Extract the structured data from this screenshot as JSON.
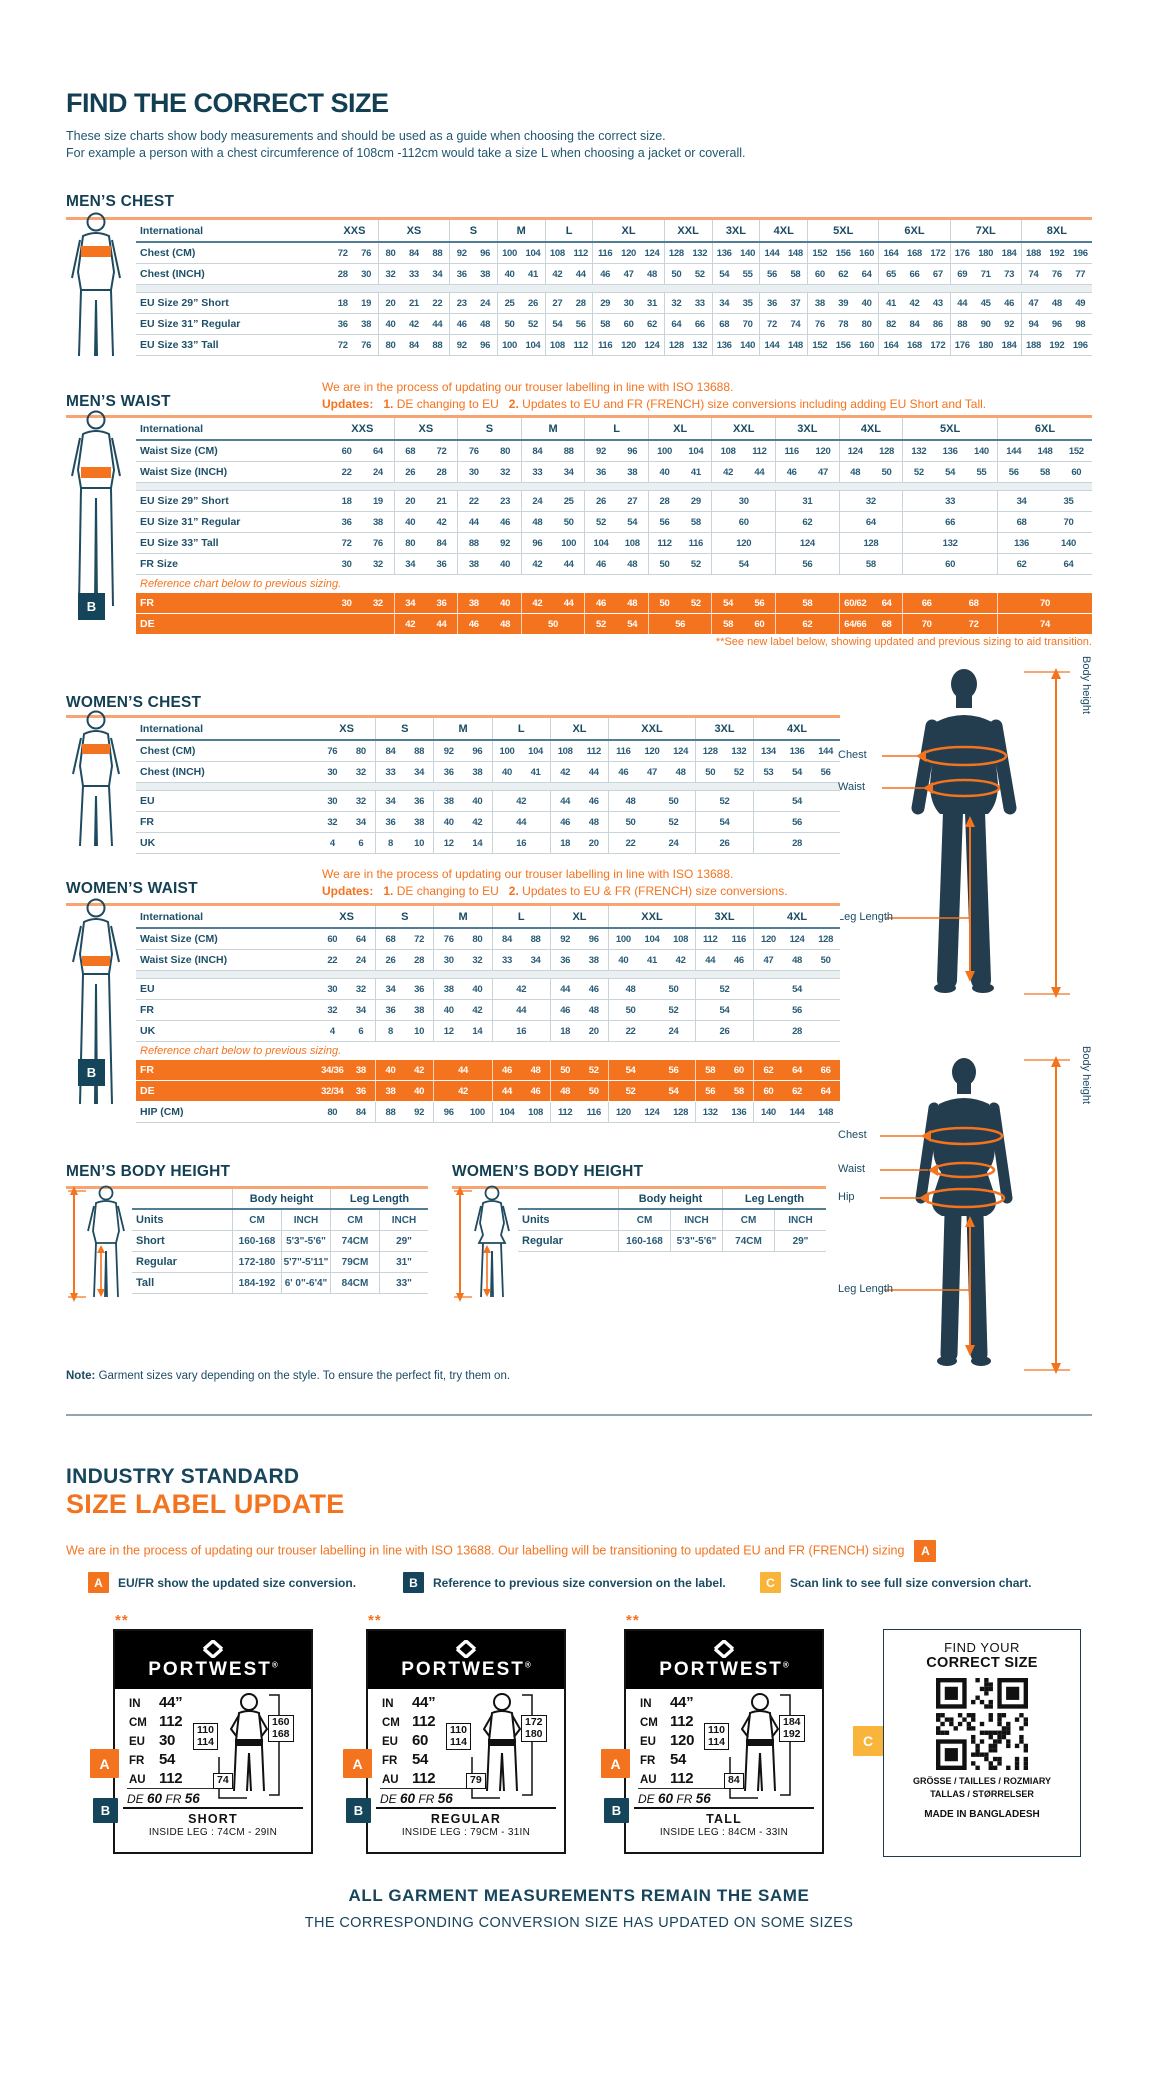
{
  "header": {
    "title": "FIND THE CORRECT SIZE",
    "intro1": "These size charts show body measurements and should be used as a guide when choosing the correct size.",
    "intro2": "For example a person with a chest circumference of 108cm -112cm would take a size L when choosing a jacket or coverall."
  },
  "mens_chest": {
    "title": "MEN’S CHEST",
    "header_label": "International",
    "col_groups": [
      [
        "XXS",
        2
      ],
      [
        "XS",
        3
      ],
      [
        "S",
        2
      ],
      [
        "M",
        2
      ],
      [
        "L",
        2
      ],
      [
        "XL",
        3
      ],
      [
        "XXL",
        2
      ],
      [
        "3XL",
        2
      ],
      [
        "4XL",
        2
      ],
      [
        "5XL",
        3
      ],
      [
        "6XL",
        3
      ],
      [
        "7XL",
        3
      ],
      [
        "8XL",
        3
      ]
    ],
    "rows": [
      {
        "label": "Chest (CM)",
        "cells": [
          "72 76",
          "80 84 88",
          "92 96",
          "100 104",
          "108 112",
          "116 120 124",
          "128 132",
          "136 140",
          "144 148",
          "152 156 160",
          "164 168 172",
          "176 180 184",
          "188 192 196"
        ]
      },
      {
        "label": "Chest (INCH)",
        "cells": [
          "28 30",
          "32 33 34",
          "36 38",
          "40 41",
          "42 44",
          "46 47 48",
          "50 52",
          "54 55",
          "56 58",
          "60 62 64",
          "65 66 67",
          "69 71 73",
          "74 76 77"
        ]
      },
      {
        "gap": true
      },
      {
        "label": "EU Size 29” Short",
        "cells": [
          "18 19",
          "20 21 22",
          "23 24",
          "25 26",
          "27 28",
          "29 30 31",
          "32 33",
          "34 35",
          "36 37",
          "38 39 40",
          "41 42 43",
          "44 45 46",
          "47 48 49"
        ]
      },
      {
        "label": "EU Size 31” Regular",
        "cells": [
          "36 38",
          "40 42 44",
          "46 48",
          "50 52",
          "54 56",
          "58 60 62",
          "64 66",
          "68 70",
          "72 74",
          "76 78 80",
          "82 84 86",
          "88 90 92",
          "94 96 98"
        ]
      },
      {
        "label": "EU Size 33” Tall",
        "cells": [
          "72 76",
          "80 84 88",
          "92 96",
          "100 104",
          "108 112",
          "116 120 124",
          "128 132",
          "136 140",
          "144 148",
          "152 156 160",
          "164 168 172",
          "176 180 184",
          "188 192 196"
        ]
      }
    ]
  },
  "mens_waist": {
    "title": "MEN’S WAIST",
    "note1": "We are in the process of updating our trouser labelling in line with ISO 13688.",
    "updates_label": "Updates:",
    "u1n": "1.",
    "u1": " DE changing to EU",
    "u2n": "2.",
    "u2": " Updates to EU and FR (FRENCH) size conversions including adding EU Short and Tall.",
    "header_label": "International",
    "badge": "B",
    "col_groups": [
      [
        "XXS",
        2
      ],
      [
        "XS",
        2
      ],
      [
        "S",
        2
      ],
      [
        "M",
        2
      ],
      [
        "L",
        2
      ],
      [
        "XL",
        2
      ],
      [
        "XXL",
        2
      ],
      [
        "3XL",
        2
      ],
      [
        "4XL",
        2
      ],
      [
        "5XL",
        3
      ],
      [
        "6XL",
        3
      ]
    ],
    "rows": [
      {
        "label": "Waist Size (CM)",
        "cells": [
          "60 64",
          "68 72",
          "76 80",
          "84 88",
          "92 96",
          "100 104",
          "108 112",
          "116 120",
          "124 128",
          "132 136 140",
          "144 148 152"
        ]
      },
      {
        "label": "Waist Size (INCH)",
        "cells": [
          "22 24",
          "26 28",
          "30 32",
          "33 34",
          "36 38",
          "40 41",
          "42 44",
          "46 47",
          "48 50",
          "52 54 55",
          "56 58 60"
        ]
      },
      {
        "gap": true
      },
      {
        "label": "EU Size 29” Short",
        "cells": [
          "18 19",
          "20 21",
          "22 23",
          "24 25",
          "26 27",
          "28 29",
          "30",
          "31",
          "32",
          "33",
          "34 35"
        ]
      },
      {
        "label": "EU Size 31” Regular",
        "cells": [
          "36 38",
          "40 42",
          "44 46",
          "48 50",
          "52 54",
          "56 58",
          "60",
          "62",
          "64",
          "66",
          "68 70"
        ]
      },
      {
        "label": "EU Size 33” Tall",
        "cells": [
          "72 76",
          "80 84",
          "88 92",
          "96 100",
          "104 108",
          "112 116",
          "120",
          "124",
          "128",
          "132",
          "136 140"
        ]
      },
      {
        "label": "FR Size",
        "cells": [
          "30 32",
          "34 36",
          "38 40",
          "42 44",
          "46 48",
          "50 52",
          "54",
          "56",
          "58",
          "60",
          "62 64"
        ]
      },
      {
        "ref": "Reference chart below to previous sizing."
      },
      {
        "label": "FR",
        "orange": true,
        "cells": [
          "30 32",
          "34 36",
          "38 40",
          "42 44",
          "46 48",
          "50 52",
          "54 56",
          "58",
          "60/62 64",
          "66 68",
          "70"
        ]
      },
      {
        "label": "DE",
        "orange": true,
        "cells": [
          "",
          "42 44",
          "46 48",
          "50",
          "52 54",
          "56",
          "58 60",
          "62",
          "64/66 68",
          "70 72",
          "74"
        ]
      }
    ],
    "footnote": "**See new label below, showing updated and previous sizing to aid transition."
  },
  "womens_chest": {
    "title": "WOMEN’S CHEST",
    "header_label": "International",
    "col_groups": [
      [
        "XS",
        2
      ],
      [
        "S",
        2
      ],
      [
        "M",
        2
      ],
      [
        "L",
        2
      ],
      [
        "XL",
        2
      ],
      [
        "XXL",
        3
      ],
      [
        "3XL",
        2
      ],
      [
        "4XL",
        3
      ]
    ],
    "rows": [
      {
        "label": "Chest (CM)",
        "cells": [
          "76 80",
          "84 88",
          "92 96",
          "100 104",
          "108 112",
          "116 120 124",
          "128 132",
          "134 136 144"
        ]
      },
      {
        "label": "Chest (INCH)",
        "cells": [
          "30 32",
          "33 34",
          "36 38",
          "40 41",
          "42 44",
          "46 47 48",
          "50 52",
          "53 54 56"
        ]
      },
      {
        "gap": true
      },
      {
        "label": "EU",
        "cells": [
          "30 32",
          "34 36",
          "38 40",
          "42",
          "44 46",
          "48 50",
          "52",
          "54"
        ]
      },
      {
        "label": "FR",
        "cells": [
          "32 34",
          "36 38",
          "40 42",
          "44",
          "46 48",
          "50 52",
          "54",
          "56"
        ]
      },
      {
        "label": "UK",
        "cells": [
          "4 6",
          "8 10",
          "12 14",
          "16",
          "18 20",
          "22 24",
          "26",
          "28"
        ]
      }
    ]
  },
  "womens_waist": {
    "title": "WOMEN’S WAIST",
    "note1": "We are in the process of updating our trouser labelling in line with ISO 13688.",
    "updates_label": "Updates:",
    "u1n": "1.",
    "u1": " DE changing to EU",
    "u2n": "2.",
    "u2": " Updates to EU & FR (FRENCH) size conversions.",
    "header_label": "International",
    "badge": "B",
    "col_groups": [
      [
        "XS",
        2
      ],
      [
        "S",
        2
      ],
      [
        "M",
        2
      ],
      [
        "L",
        2
      ],
      [
        "XL",
        2
      ],
      [
        "XXL",
        3
      ],
      [
        "3XL",
        2
      ],
      [
        "4XL",
        3
      ]
    ],
    "rows": [
      {
        "label": "Waist Size (CM)",
        "cells": [
          "60 64",
          "68 72",
          "76 80",
          "84 88",
          "92 96",
          "100 104 108",
          "112 116",
          "120 124 128"
        ]
      },
      {
        "label": "Waist Size (INCH)",
        "cells": [
          "22 24",
          "26 28",
          "30 32",
          "33 34",
          "36 38",
          "40 41 42",
          "44 46",
          "47 48 50"
        ]
      },
      {
        "gap": true
      },
      {
        "label": "EU",
        "cells": [
          "30 32",
          "34 36",
          "38 40",
          "42",
          "44 46",
          "48 50",
          "52",
          "54"
        ]
      },
      {
        "label": "FR",
        "cells": [
          "32 34",
          "36 38",
          "40 42",
          "44",
          "46 48",
          "50 52",
          "54",
          "56"
        ]
      },
      {
        "label": "UK",
        "cells": [
          "4 6",
          "8 10",
          "12 14",
          "16",
          "18 20",
          "22 24",
          "26",
          "28"
        ]
      },
      {
        "ref": "Reference chart below to previous sizing."
      },
      {
        "label": "FR",
        "orange": true,
        "cells": [
          "34/36 38",
          "40 42",
          "44",
          "46 48",
          "50 52",
          "54 56",
          "58 60",
          "62 64 66"
        ]
      },
      {
        "label": "DE",
        "orange": true,
        "cells": [
          "32/34 36",
          "38 40",
          "42",
          "44 46",
          "48 50",
          "52 54",
          "56 58",
          "60 62 64"
        ]
      },
      {
        "label": "HIP (CM)",
        "cells": [
          "80 84",
          "88 92",
          "96 100",
          "104 108",
          "112 116",
          "120 124 128",
          "132 136",
          "140 144 148"
        ]
      }
    ]
  },
  "mens_height": {
    "title": "MEN’S BODY HEIGHT",
    "group1": "Body height",
    "group2": "Leg Length",
    "units_label": "Units",
    "units": [
      "CM",
      "INCH",
      "CM",
      "INCH"
    ],
    "rows": [
      {
        "label": "Short",
        "cells": [
          "160-168",
          "5'3\"-5'6\"",
          "74CM",
          "29\""
        ]
      },
      {
        "label": "Regular",
        "cells": [
          "172-180",
          "5'7\"-5'11\"",
          "79CM",
          "31\""
        ]
      },
      {
        "label": "Tall",
        "cells": [
          "184-192",
          "6' 0\"-6'4\"",
          "84CM",
          "33\""
        ]
      }
    ]
  },
  "womens_height": {
    "title": "WOMEN’S BODY HEIGHT",
    "group1": "Body height",
    "group2": "Leg Length",
    "units_label": "Units",
    "units": [
      "CM",
      "INCH",
      "CM",
      "INCH"
    ],
    "rows": [
      {
        "label": "Regular",
        "cells": [
          "160-168",
          "5'3\"-5'6\"",
          "74CM",
          "29\""
        ]
      }
    ]
  },
  "man_figure": {
    "chest": "Chest",
    "waist": "Waist",
    "leg": "Leg Length",
    "height": "Body height"
  },
  "woman_figure": {
    "chest": "Chest",
    "waist": "Waist",
    "hip": "Hip",
    "leg": "Leg Length",
    "height": "Body height"
  },
  "note": {
    "prefix": "Note:",
    "text": " Garment sizes vary depending on the style. To ensure the perfect fit, try them on."
  },
  "industry": {
    "line1": "INDUSTRY STANDARD",
    "line2": "SIZE LABEL UPDATE",
    "para": "We are in the process of updating our trouser labelling in line with ISO 13688. Our labelling will be transitioning to updated EU and FR (FRENCH) sizing",
    "para_badge": "A",
    "legend": [
      {
        "badge": "A",
        "text": "EU/FR show the updated size conversion."
      },
      {
        "badge": "B",
        "text": "Reference to previous size conversion on the label."
      },
      {
        "badge": "C",
        "text": "Scan link to see full size conversion chart."
      }
    ]
  },
  "labels": {
    "brand": "PORTWEST",
    "reg": "®",
    "stars": "**",
    "badge_a": "A",
    "badge_b": "B",
    "cards": [
      {
        "rows": [
          [
            "IN",
            "44”"
          ],
          [
            "CM",
            "112"
          ],
          [
            "EU",
            "30"
          ],
          [
            "FR",
            "54"
          ],
          [
            "AU",
            "112"
          ]
        ],
        "prev_l1": "DE",
        "prev_v1": "60",
        "prev_l2": "FR",
        "prev_v2": "56",
        "waist": [
          "110",
          "114"
        ],
        "height": [
          "160",
          "168"
        ],
        "inseam": "74",
        "fit": "SHORT",
        "leg": "INSIDE LEG : 74CM - 29IN"
      },
      {
        "rows": [
          [
            "IN",
            "44”"
          ],
          [
            "CM",
            "112"
          ],
          [
            "EU",
            "60"
          ],
          [
            "FR",
            "54"
          ],
          [
            "AU",
            "112"
          ]
        ],
        "prev_l1": "DE",
        "prev_v1": "60",
        "prev_l2": "FR",
        "prev_v2": "56",
        "waist": [
          "110",
          "114"
        ],
        "height": [
          "172",
          "180"
        ],
        "inseam": "79",
        "fit": "REGULAR",
        "leg": "INSIDE LEG : 79CM - 31IN"
      },
      {
        "rows": [
          [
            "IN",
            "44”"
          ],
          [
            "CM",
            "112"
          ],
          [
            "EU",
            "120"
          ],
          [
            "FR",
            "54"
          ],
          [
            "AU",
            "112"
          ]
        ],
        "prev_l1": "DE",
        "prev_v1": "60",
        "prev_l2": "FR",
        "prev_v2": "56",
        "waist": [
          "110",
          "114"
        ],
        "height": [
          "184",
          "192"
        ],
        "inseam": "84",
        "fit": "TALL",
        "leg": "INSIDE LEG : 84CM - 33IN"
      }
    ]
  },
  "qr": {
    "badge": "C",
    "heading1": "FIND YOUR",
    "heading2": "CORRECT SIZE",
    "caption1": "GRÖSSE / TAILLES / ROZMIARY",
    "caption2": "TALLAS  / STØRRELSER",
    "made": "MADE IN BANGLADESH"
  },
  "footer": {
    "line1": "ALL GARMENT MEASUREMENTS REMAIN THE SAME",
    "line2": "THE CORRESPONDING CONVERSION SIZE HAS UPDATED ON SOME SIZES"
  },
  "colors": {
    "orange": "#F4731F",
    "navy": "#15455A",
    "amber": "#F9B43B"
  }
}
